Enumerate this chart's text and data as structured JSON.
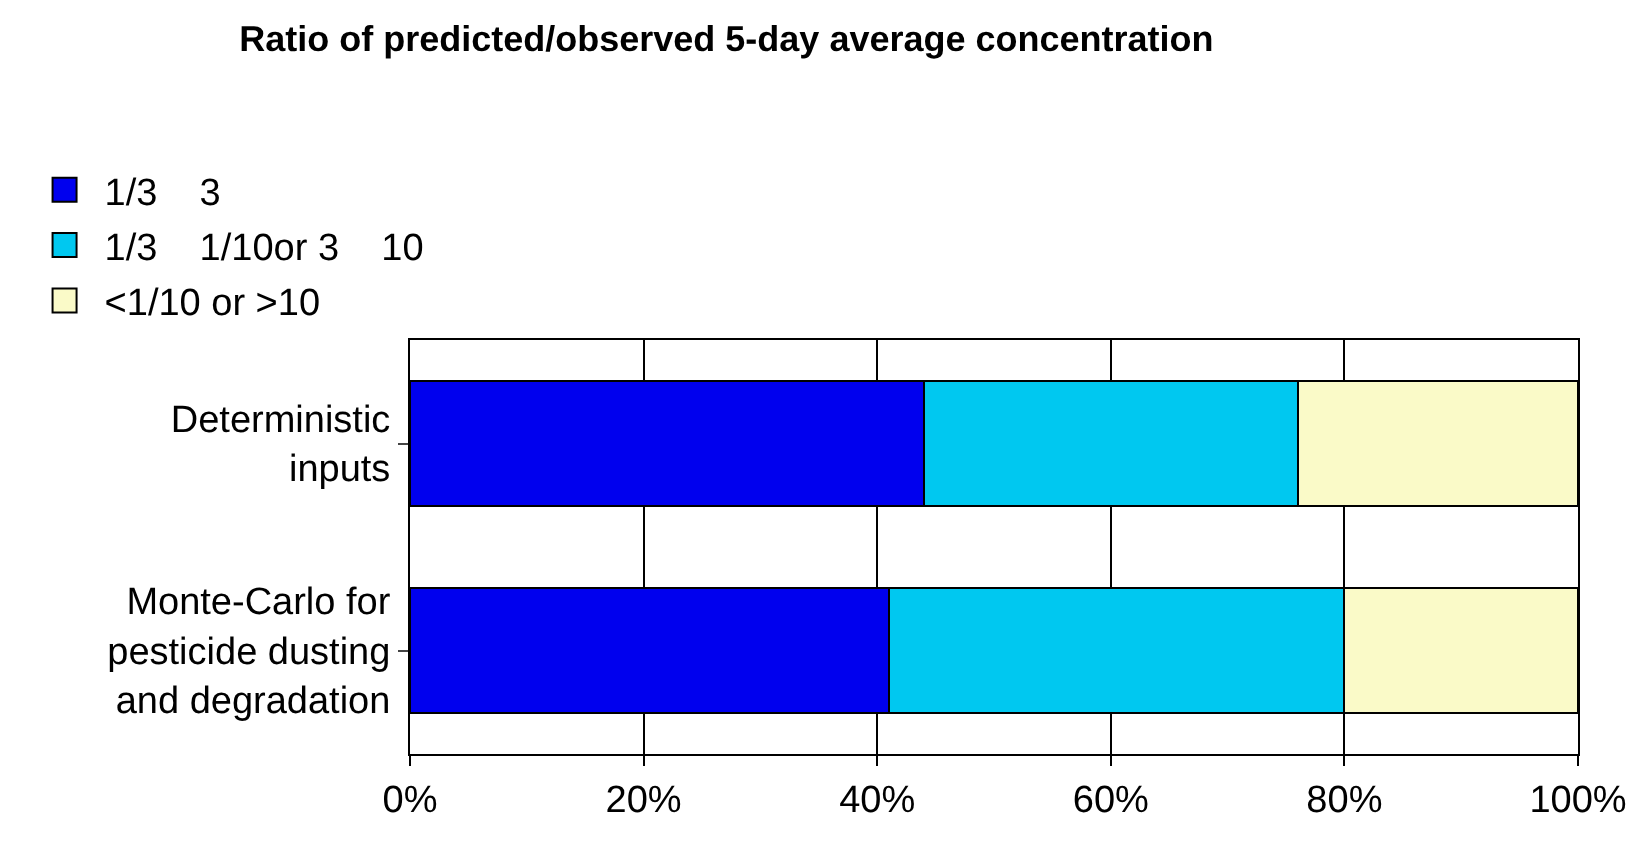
{
  "chart_data": {
    "type": "bar",
    "orientation": "horizontal",
    "stacked": true,
    "title": "Ratio of predicted/observed 5-day average concentration",
    "categories": [
      "Deterministic\ninputs",
      "Monte-Carlo for\npesticide dusting\nand degradation"
    ],
    "series": [
      {
        "name": "1/3    3",
        "color": "#0000ee",
        "values": [
          44,
          41
        ]
      },
      {
        "name": "1/3    1/10or 3    10",
        "color": "#00c8f0",
        "values": [
          32,
          39
        ]
      },
      {
        "name": "<1/10 or >10",
        "color": "#fafac8",
        "values": [
          24,
          20
        ]
      }
    ],
    "xlim": [
      0,
      100
    ],
    "xticks": [
      {
        "value": 0,
        "label": "0%"
      },
      {
        "value": 20,
        "label": "20%"
      },
      {
        "value": 40,
        "label": "40%"
      },
      {
        "value": 60,
        "label": "60%"
      },
      {
        "value": 80,
        "label": "80%"
      },
      {
        "value": 100,
        "label": "100%"
      }
    ],
    "grid": "x",
    "legend": "top left"
  }
}
